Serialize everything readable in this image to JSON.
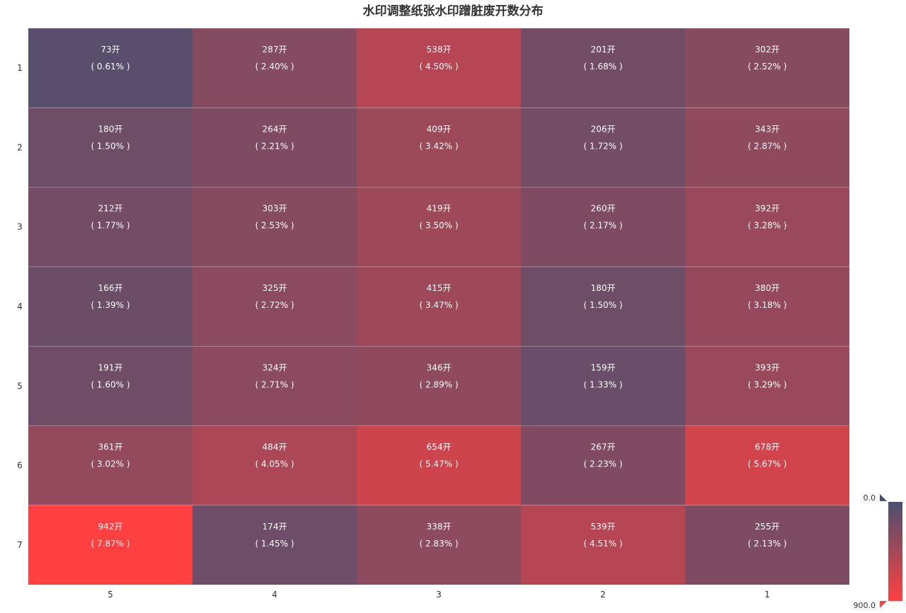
{
  "chart_data": {
    "type": "heatmap",
    "title": "水印调整纸张水印蹭脏废开数分布",
    "x_categories": [
      "5",
      "4",
      "3",
      "2",
      "1"
    ],
    "y_categories": [
      "1",
      "2",
      "3",
      "4",
      "5",
      "6",
      "7"
    ],
    "unit": "开",
    "values": [
      [
        73,
        287,
        538,
        201,
        302
      ],
      [
        180,
        264,
        409,
        206,
        343
      ],
      [
        212,
        303,
        419,
        260,
        392
      ],
      [
        166,
        325,
        415,
        180,
        380
      ],
      [
        191,
        324,
        346,
        159,
        393
      ],
      [
        361,
        484,
        654,
        267,
        678
      ],
      [
        942,
        174,
        338,
        539,
        255
      ]
    ],
    "percent_labels": [
      [
        "( 0.61% )",
        "( 2.40% )",
        "( 4.50% )",
        "( 1.68% )",
        "( 2.52% )"
      ],
      [
        "( 1.50% )",
        "( 2.21% )",
        "( 3.42% )",
        "( 1.72% )",
        "( 2.87% )"
      ],
      [
        "( 1.77% )",
        "( 2.53% )",
        "( 3.50% )",
        "( 2.17% )",
        "( 3.28% )"
      ],
      [
        "( 1.39% )",
        "( 2.72% )",
        "( 3.47% )",
        "( 1.50% )",
        "( 3.18% )"
      ],
      [
        "( 1.60% )",
        "( 2.71% )",
        "( 2.89% )",
        "( 1.33% )",
        "( 3.29% )"
      ],
      [
        "( 3.02% )",
        "( 4.05% )",
        "( 5.47% )",
        "( 2.23% )",
        "( 5.67% )"
      ],
      [
        "( 7.87% )",
        "( 1.45% )",
        "( 2.83% )",
        "( 4.51% )",
        "( 2.13% )"
      ]
    ],
    "color_min": 0,
    "color_max": 900,
    "color_min_label": "0.0",
    "color_max_label": "900.0",
    "color_low": "#4a5070",
    "color_high": "#ff4040",
    "grid": false
  }
}
